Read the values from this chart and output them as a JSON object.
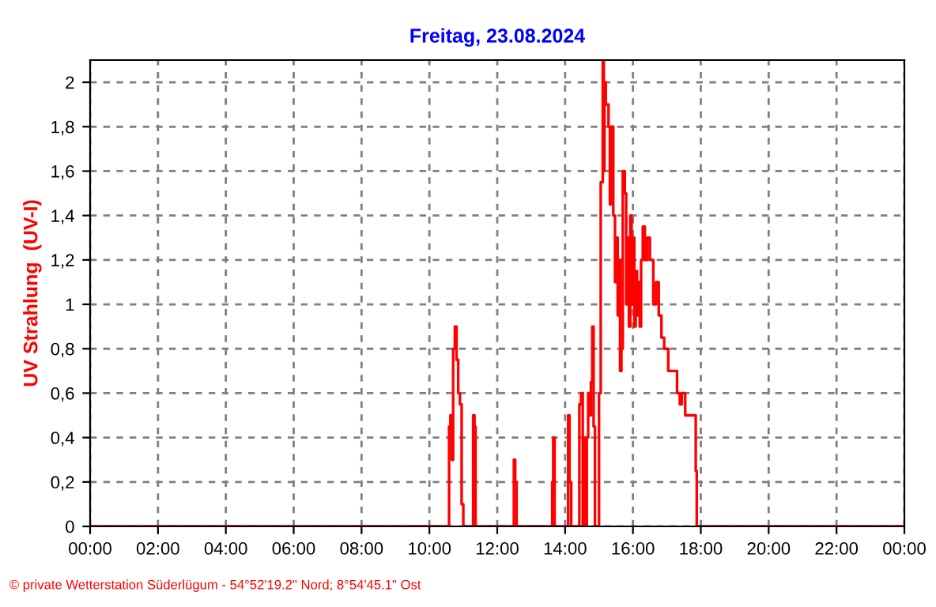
{
  "chart_data": {
    "type": "step",
    "title": "Freitag, 23.08.2024",
    "ylabel": "UV Strahlung  (UV-I)",
    "annotations": [
      "© private Wetterstation Süderlügum - 54°52'19.2\" Nord; 8°54'45.1\" Ost"
    ],
    "x": [
      0,
      10.58,
      10.62,
      10.66,
      10.7,
      10.75,
      10.8,
      10.85,
      10.9,
      10.95,
      11.0,
      11.29,
      11.33,
      11.36,
      12.49,
      12.53,
      12.57,
      13.62,
      13.65,
      13.69,
      14.09,
      14.13,
      14.18,
      14.42,
      14.47,
      14.52,
      14.56,
      14.6,
      14.64,
      14.68,
      14.72,
      14.76,
      14.8,
      14.84,
      14.88,
      15.0,
      15.05,
      15.11,
      15.14,
      15.16,
      15.2,
      15.28,
      15.32,
      15.36,
      15.42,
      15.47,
      15.5,
      15.55,
      15.6,
      15.62,
      15.66,
      15.7,
      15.76,
      15.8,
      15.84,
      15.88,
      15.92,
      15.96,
      16.0,
      16.04,
      16.08,
      16.12,
      16.16,
      16.2,
      16.24,
      16.29,
      16.35,
      16.42,
      16.5,
      16.6,
      16.68,
      16.76,
      16.84,
      16.92,
      17.04,
      17.3,
      17.38,
      17.44,
      17.54,
      17.85,
      17.88,
      24
    ],
    "series": [
      {
        "color": "#ff0000",
        "values": [
          0,
          0.45,
          0.5,
          0.3,
          0.8,
          0.9,
          0.75,
          0.6,
          0.55,
          0.1,
          0,
          0.5,
          0.45,
          0,
          0.3,
          0.2,
          0,
          0.2,
          0.4,
          0,
          0.5,
          0.2,
          0,
          0.55,
          0.6,
          0,
          0.4,
          0,
          0.4,
          0.6,
          0.5,
          0.65,
          0.9,
          0.45,
          0,
          0.6,
          1.55,
          2.1,
          1.6,
          2.0,
          1.9,
          1.8,
          1.45,
          1.8,
          1.4,
          1.1,
          1.3,
          0.95,
          1.2,
          0.7,
          0.8,
          1.6,
          1.5,
          1.0,
          1.3,
          0.9,
          1.4,
          1.0,
          1.3,
          0.9,
          1.15,
          0.95,
          1.1,
          0.9,
          1.2,
          1.35,
          1.2,
          1.3,
          1.2,
          1.0,
          1.1,
          0.95,
          0.85,
          0.8,
          0.7,
          0.6,
          0.55,
          0.6,
          0.5,
          0.25,
          0,
          0
        ]
      }
    ],
    "xlim": [
      0,
      24
    ],
    "xticks": [
      {
        "value": 0,
        "label": "00:00"
      },
      {
        "value": 2,
        "label": "02:00"
      },
      {
        "value": 4,
        "label": "04:00"
      },
      {
        "value": 6,
        "label": "06:00"
      },
      {
        "value": 8,
        "label": "08:00"
      },
      {
        "value": 10,
        "label": "10:00"
      },
      {
        "value": 12,
        "label": "12:00"
      },
      {
        "value": 14,
        "label": "14:00"
      },
      {
        "value": 16,
        "label": "16:00"
      },
      {
        "value": 18,
        "label": "18:00"
      },
      {
        "value": 20,
        "label": "20:00"
      },
      {
        "value": 22,
        "label": "22:00"
      },
      {
        "value": 24,
        "label": "00:00"
      }
    ],
    "ylim": [
      0,
      2.1
    ],
    "yticks": [
      0,
      {
        "value": 0.2,
        "label": "0,2"
      },
      {
        "value": 0.4,
        "label": "0,4"
      },
      {
        "value": 0.6,
        "label": "0,6"
      },
      {
        "value": 0.8,
        "label": "0,8"
      },
      1,
      {
        "value": 1.2,
        "label": "1,2"
      },
      {
        "value": 1.4,
        "label": "1,4"
      },
      {
        "value": 1.6,
        "label": "1,6"
      },
      {
        "value": 1.8,
        "label": "1,8"
      },
      2
    ],
    "grid": true,
    "line_style": "solid",
    "marker": "none"
  }
}
